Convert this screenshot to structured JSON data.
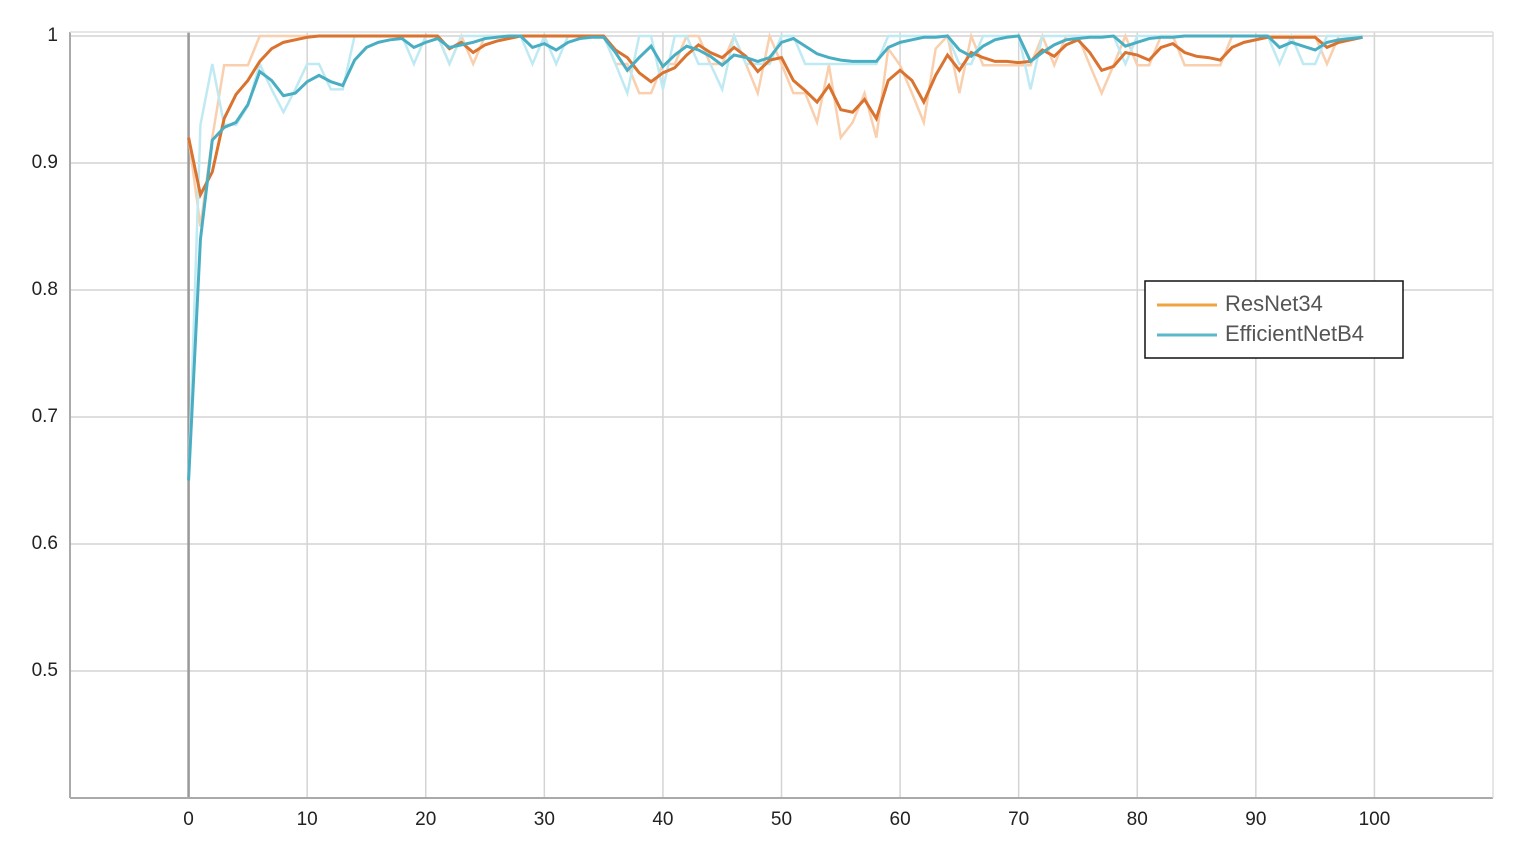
{
  "chart_data": {
    "type": "line",
    "x": [
      0,
      1,
      2,
      3,
      4,
      5,
      6,
      7,
      8,
      9,
      10,
      11,
      12,
      13,
      14,
      15,
      16,
      17,
      18,
      19,
      20,
      21,
      22,
      23,
      24,
      25,
      26,
      27,
      28,
      29,
      30,
      31,
      32,
      33,
      34,
      35,
      36,
      37,
      38,
      39,
      40,
      41,
      42,
      43,
      44,
      45,
      46,
      47,
      48,
      49,
      50,
      51,
      52,
      53,
      54,
      55,
      56,
      57,
      58,
      59,
      60,
      61,
      62,
      63,
      64,
      65,
      66,
      67,
      68,
      69,
      70,
      71,
      72,
      73,
      74,
      75,
      76,
      77,
      78,
      79,
      80,
      81,
      82,
      83,
      84,
      85,
      86,
      87,
      88,
      89,
      90,
      91,
      92,
      93,
      94,
      95,
      96,
      97,
      98,
      99
    ],
    "series": [
      {
        "name": "ResNet34",
        "color": "#d9732f",
        "legend_color": "#efa43f",
        "raw_color": "#f9cfae",
        "values": [
          0.92,
          0.875,
          0.893,
          0.935,
          0.954,
          0.965,
          0.98,
          0.99,
          0.995,
          0.997,
          0.999,
          1,
          1,
          1,
          1,
          1,
          1,
          1,
          1,
          1,
          1,
          1,
          0.99,
          0.995,
          0.987,
          0.993,
          0.996,
          0.998,
          1,
          1,
          1,
          1,
          1,
          1,
          1,
          1,
          0.989,
          0.983,
          0.971,
          0.964,
          0.971,
          0.975,
          0.985,
          0.993,
          0.987,
          0.983,
          0.991,
          0.984,
          0.972,
          0.981,
          0.983,
          0.965,
          0.957,
          0.948,
          0.961,
          0.942,
          0.94,
          0.95,
          0.935,
          0.965,
          0.973,
          0.965,
          0.948,
          0.969,
          0.985,
          0.973,
          0.987,
          0.983,
          0.98,
          0.98,
          0.979,
          0.98,
          0.989,
          0.984,
          0.993,
          0.997,
          0.987,
          0.973,
          0.976,
          0.987,
          0.985,
          0.981,
          0.991,
          0.994,
          0.987,
          0.984,
          0.983,
          0.981,
          0.991,
          0.995,
          0.997,
          0.999,
          0.999,
          0.999,
          0.999,
          0.999,
          0.991,
          0.995,
          0.997,
          0.999
        ],
        "raw_values": [
          0.92,
          0.85,
          0.92,
          0.977,
          0.977,
          0.977,
          1,
          1,
          1,
          1,
          1,
          1,
          1,
          1,
          1,
          1,
          1,
          1,
          1,
          1,
          1,
          1,
          0.978,
          1,
          0.978,
          1,
          1,
          1,
          1,
          1,
          1,
          1,
          1,
          1,
          1,
          1,
          0.978,
          0.978,
          0.955,
          0.955,
          0.978,
          0.978,
          1,
          1,
          0.978,
          0.978,
          1,
          0.978,
          0.955,
          1,
          0.978,
          0.955,
          0.955,
          0.932,
          0.977,
          0.92,
          0.932,
          0.955,
          0.92,
          0.99,
          0.977,
          0.955,
          0.932,
          0.99,
          1,
          0.955,
          1,
          0.977,
          0.977,
          0.977,
          0.977,
          0.977,
          1,
          0.977,
          1,
          1,
          0.977,
          0.955,
          0.977,
          1,
          0.977,
          0.977,
          1,
          1,
          0.977,
          0.977,
          0.977,
          0.977,
          1,
          1,
          1,
          1,
          1,
          1,
          1,
          1,
          0.978,
          1,
          1,
          1
        ]
      },
      {
        "name": "EfficientNetB4",
        "color": "#4aaec3",
        "legend_color": "#5bb8c9",
        "raw_color": "#bfeaf3",
        "values": [
          0.65,
          0.84,
          0.918,
          0.928,
          0.932,
          0.946,
          0.972,
          0.965,
          0.953,
          0.955,
          0.964,
          0.969,
          0.964,
          0.961,
          0.981,
          0.991,
          0.995,
          0.997,
          0.998,
          0.991,
          0.995,
          0.998,
          0.991,
          0.993,
          0.995,
          0.998,
          0.999,
          1,
          1,
          0.991,
          0.994,
          0.989,
          0.995,
          0.998,
          0.999,
          0.999,
          0.987,
          0.973,
          0.983,
          0.992,
          0.976,
          0.985,
          0.992,
          0.989,
          0.984,
          0.977,
          0.985,
          0.983,
          0.98,
          0.983,
          0.995,
          0.998,
          0.992,
          0.986,
          0.983,
          0.981,
          0.98,
          0.98,
          0.98,
          0.991,
          0.995,
          0.997,
          0.999,
          0.999,
          1,
          0.989,
          0.984,
          0.992,
          0.997,
          0.999,
          1,
          0.98,
          0.987,
          0.993,
          0.997,
          0.998,
          0.999,
          0.999,
          1,
          0.992,
          0.995,
          0.998,
          0.999,
          0.999,
          1,
          1,
          1,
          1,
          1,
          1,
          1,
          1,
          0.991,
          0.995,
          0.992,
          0.989,
          0.995,
          0.997,
          0.998,
          0.999
        ],
        "raw_values": [
          0.65,
          0.93,
          0.978,
          0.93,
          0.93,
          0.945,
          0.978,
          0.958,
          0.94,
          0.958,
          0.978,
          0.978,
          0.958,
          0.958,
          1,
          1,
          1,
          1,
          1,
          0.978,
          1,
          1,
          0.978,
          1,
          1,
          1,
          1,
          1,
          1,
          0.978,
          1,
          0.978,
          1,
          1,
          1,
          1,
          0.978,
          0.955,
          1,
          1,
          0.958,
          1,
          1,
          0.978,
          0.978,
          0.958,
          1,
          0.978,
          0.978,
          0.978,
          1,
          1,
          0.978,
          0.978,
          0.978,
          0.978,
          0.978,
          0.978,
          0.978,
          1,
          1,
          1,
          1,
          1,
          1,
          0.978,
          0.978,
          1,
          1,
          1,
          1,
          0.958,
          1,
          1,
          1,
          1,
          1,
          1,
          1,
          0.978,
          1,
          1,
          1,
          1,
          1,
          1,
          1,
          1,
          1,
          1,
          1,
          1,
          0.978,
          1,
          0.978,
          0.978,
          1,
          1,
          1,
          1
        ]
      }
    ],
    "xlim": [
      -10,
      110
    ],
    "xticks": [
      0,
      10,
      20,
      30,
      40,
      50,
      60,
      70,
      80,
      90,
      100
    ],
    "ylim": [
      0.4,
      1
    ],
    "yticks": [
      0.5,
      0.6,
      0.7,
      0.8,
      0.9,
      1
    ],
    "grid": true,
    "legend": "right"
  }
}
